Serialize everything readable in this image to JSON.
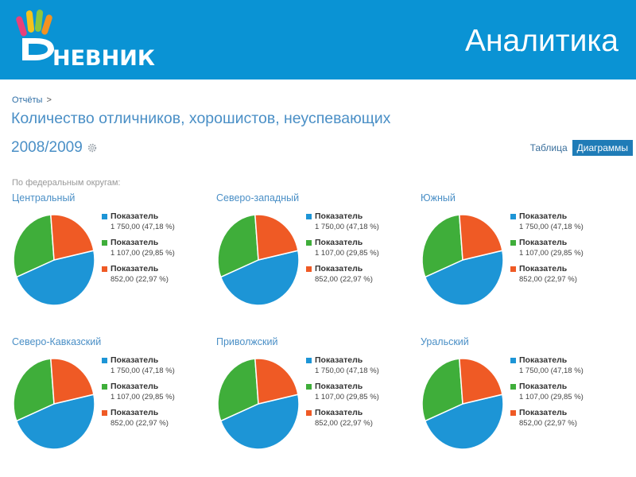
{
  "header": {
    "logo_text": "НЕВНИК",
    "title": "Аналитика",
    "colors": {
      "background": "#0a93d4",
      "text": "#ffffff"
    }
  },
  "breadcrumb": {
    "link": "Отчёты",
    "separator": ">"
  },
  "page_title": "Количество отличников, хорошистов, неуспевающих",
  "year": "2008/2009",
  "view_toggle": {
    "table": "Таблица",
    "charts": "Диаграммы",
    "active": "charts"
  },
  "subtitle": "По федеральным округам:",
  "colors": {
    "blue": "#1d95d6",
    "green": "#3fae3a",
    "orange": "#ef5a25"
  },
  "chart_data": [
    {
      "type": "pie",
      "title": "Центральный",
      "series": [
        {
          "name": "Показатель",
          "value": 1750.0,
          "label": "1 750,00 (47,18 %)",
          "color": "#1d95d6"
        },
        {
          "name": "Показатель",
          "value": 1107.0,
          "label": "1 107,00 (29,85 %)",
          "color": "#3fae3a"
        },
        {
          "name": "Показатель",
          "value": 852.0,
          "label": "852,00 (22,97 %)",
          "color": "#ef5a25"
        }
      ]
    },
    {
      "type": "pie",
      "title": "Северо-западный",
      "series": [
        {
          "name": "Показатель",
          "value": 1750.0,
          "label": "1 750,00 (47,18 %)",
          "color": "#1d95d6"
        },
        {
          "name": "Показатель",
          "value": 1107.0,
          "label": "1 107,00 (29,85 %)",
          "color": "#3fae3a"
        },
        {
          "name": "Показатель",
          "value": 852.0,
          "label": "852,00 (22,97 %)",
          "color": "#ef5a25"
        }
      ]
    },
    {
      "type": "pie",
      "title": "Южный",
      "series": [
        {
          "name": "Показатель",
          "value": 1750.0,
          "label": "1 750,00 (47,18 %)",
          "color": "#1d95d6"
        },
        {
          "name": "Показатель",
          "value": 1107.0,
          "label": "1 107,00 (29,85 %)",
          "color": "#3fae3a"
        },
        {
          "name": "Показатель",
          "value": 852.0,
          "label": "852,00 (22,97 %)",
          "color": "#ef5a25"
        }
      ]
    },
    {
      "type": "pie",
      "title": "Северо-Кавказский",
      "series": [
        {
          "name": "Показатель",
          "value": 1750.0,
          "label": "1 750,00 (47,18 %)",
          "color": "#1d95d6"
        },
        {
          "name": "Показатель",
          "value": 1107.0,
          "label": "1 107,00 (29,85 %)",
          "color": "#3fae3a"
        },
        {
          "name": "Показатель",
          "value": 852.0,
          "label": "852,00 (22,97 %)",
          "color": "#ef5a25"
        }
      ]
    },
    {
      "type": "pie",
      "title": "Приволжский",
      "series": [
        {
          "name": "Показатель",
          "value": 1750.0,
          "label": "1 750,00 (47,18 %)",
          "color": "#1d95d6"
        },
        {
          "name": "Показатель",
          "value": 1107.0,
          "label": "1 107,00 (29,85 %)",
          "color": "#3fae3a"
        },
        {
          "name": "Показатель",
          "value": 852.0,
          "label": "852,00 (22,97 %)",
          "color": "#ef5a25"
        }
      ]
    },
    {
      "type": "pie",
      "title": "Уральский",
      "series": [
        {
          "name": "Показатель",
          "value": 1750.0,
          "label": "1 750,00 (47,18 %)",
          "color": "#1d95d6"
        },
        {
          "name": "Показатель",
          "value": 1107.0,
          "label": "1 107,00 (29,85 %)",
          "color": "#3fae3a"
        },
        {
          "name": "Показатель",
          "value": 852.0,
          "label": "852,00 (22,97 %)",
          "color": "#ef5a25"
        }
      ]
    }
  ]
}
